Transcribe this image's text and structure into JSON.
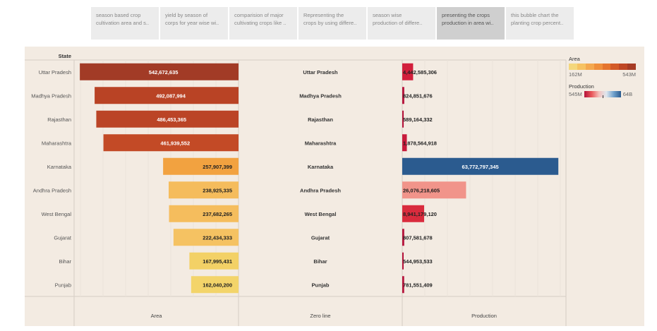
{
  "tabs": [
    {
      "line1": "season based crop",
      "line2": "cultivation area and s..",
      "active": false
    },
    {
      "line1": "yield by season of",
      "line2": "corps for year wise wi..",
      "active": false
    },
    {
      "line1": "comparision of major",
      "line2": "cultivating crops like ..",
      "active": false
    },
    {
      "line1": "Representing the",
      "line2": "crops by using differe..",
      "active": false
    },
    {
      "line1": "season wise",
      "line2": "production of differe..",
      "active": false
    },
    {
      "line1": "presenting the crops",
      "line2": "production in area wi..",
      "active": true
    },
    {
      "line1": "this bubble chart the",
      "line2": "planting crop percent..",
      "active": false
    }
  ],
  "legend": {
    "area_title": "Area",
    "area_min": "162M",
    "area_max": "543M",
    "production_title": "Production",
    "production_min": "545M",
    "production_max": "64B",
    "area_colors": [
      "#f4d77c",
      "#f6c262",
      "#f4a84f",
      "#ef8f3c",
      "#e5742e",
      "#d35a27",
      "#bf4725",
      "#a63b25"
    ]
  },
  "chart_data": {
    "type": "bar",
    "row_header": "State",
    "columns": [
      "Area",
      "Zero line",
      "Production"
    ],
    "categories": [
      "Uttar Pradesh",
      "Madhya Pradesh",
      "Rajasthan",
      "Maharashtra",
      "Karnataka",
      "Andhra Pradesh",
      "West Bengal",
      "Gujarat",
      "Bihar",
      "Punjab"
    ],
    "series": [
      {
        "name": "Area",
        "values": [
          542672635,
          492087994,
          486453365,
          461939552,
          257907399,
          238925335,
          237682265,
          222434333,
          167995431,
          162040200
        ]
      },
      {
        "name": "Production",
        "values": [
          4442585306,
          824851676,
          589164332,
          1878564918,
          63772797345,
          26076218605,
          8941179120,
          807581678,
          544953533,
          781551409
        ]
      }
    ],
    "area_labels": [
      "542,672,635",
      "492,087,994",
      "486,453,365",
      "461,939,552",
      "257,907,399",
      "238,925,335",
      "237,682,265",
      "222,434,333",
      "167,995,431",
      "162,040,200"
    ],
    "production_labels": [
      "4,442,585,306",
      "824,851,676",
      "589,164,332",
      "1,878,564,918",
      "63,772,797,345",
      "26,076,218,605",
      "8,941,179,120",
      "807,581,678",
      "544,953,533",
      "781,551,409"
    ],
    "area_colors": [
      "#a23b26",
      "#b94325",
      "#bb4426",
      "#c34a26",
      "#f2a240",
      "#f5bc5c",
      "#f5bd5d",
      "#f5c262",
      "#f3d166",
      "#f3d46a"
    ],
    "production_colors": [
      "#d21f3c",
      "#b5123a",
      "#b5123a",
      "#c81a3b",
      "#2b5b8f",
      "#f1948a",
      "#d92b3d",
      "#b5123a",
      "#b5123a",
      "#b5123a"
    ],
    "area_range": [
      0,
      543000000
    ],
    "production_range": [
      0,
      64000000000
    ],
    "grid": true
  }
}
